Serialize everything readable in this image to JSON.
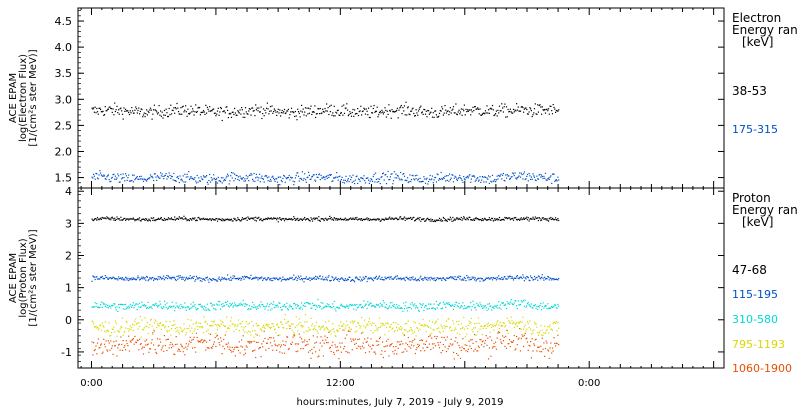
{
  "chart_data": [
    {
      "type": "scatter",
      "panel": "electron",
      "ylabel_lines": [
        "ACE EPAM",
        "log(Electron Flux)",
        "[1/(cm²s ster MeV)]"
      ],
      "ylim": [
        1.3,
        4.75
      ],
      "yticks": [
        "1.5",
        "2.0",
        "2.5",
        "3.0",
        "3.5",
        "4.0",
        "4.5"
      ],
      "yticks_values": [
        1.5,
        2.0,
        2.5,
        3.0,
        3.5,
        4.0,
        4.5
      ],
      "legend_title": [
        "Electron",
        "Energy ran",
        "[keV]"
      ],
      "series": [
        {
          "name": "38-53",
          "color": "#000000",
          "x_range_hours": [
            0,
            45
          ],
          "mean": 2.78,
          "spread": 0.06
        },
        {
          "name": "175-315",
          "color": "#0050c8",
          "x_range_hours": [
            0,
            45
          ],
          "mean": 1.5,
          "spread": 0.05
        }
      ]
    },
    {
      "type": "scatter",
      "panel": "proton",
      "ylabel_lines": [
        "ACE EPAM",
        "log(Proton Flux)",
        "[1/(cm²s ster MeV)]"
      ],
      "ylim": [
        -1.5,
        4.1
      ],
      "yticks": [
        "-1",
        "0",
        "1",
        "2",
        "3",
        "4"
      ],
      "yticks_values": [
        -1,
        0,
        1,
        2,
        3,
        4
      ],
      "legend_title": [
        "Proton",
        "Energy ran",
        "[keV]"
      ],
      "series": [
        {
          "name": "47-68",
          "color": "#000000",
          "x_range_hours": [
            0,
            45
          ],
          "mean": 3.15,
          "spread": 0.03
        },
        {
          "name": "115-195",
          "color": "#0050c8",
          "x_range_hours": [
            0,
            45
          ],
          "mean": 1.3,
          "spread": 0.04
        },
        {
          "name": "310-580",
          "color": "#00d8d8",
          "x_range_hours": [
            0,
            45
          ],
          "mean": 0.45,
          "spread": 0.07
        },
        {
          "name": "795-1193",
          "color": "#d8d800",
          "x_range_hours": [
            0,
            45
          ],
          "mean": -0.2,
          "spread": 0.12
        },
        {
          "name": "1060-1900",
          "color": "#e85000",
          "x_range_hours": [
            0,
            45
          ],
          "mean": -0.75,
          "spread": 0.18
        }
      ]
    }
  ],
  "x_axis": {
    "xlim_hours": [
      -1.3,
      61
    ],
    "tick_labels": [
      "0:00",
      "12:00",
      "0:00"
    ],
    "tick_values_hours": [
      0,
      24,
      48
    ],
    "xlabel": "hours:minutes, July  7, 2019 - July  9, 2019"
  }
}
